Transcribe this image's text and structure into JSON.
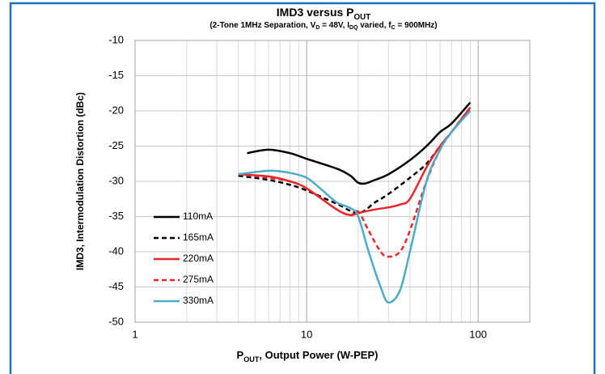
{
  "chart_data": {
    "type": "line",
    "title": [
      "IMD3 versus P",
      "OUT"
    ],
    "subtitle": [
      "(2-Tone 1MHz Separation, V",
      "D",
      " = 48V, I",
      "DQ",
      " varied, f",
      "C",
      " = 900MHz)"
    ],
    "xlabel": [
      "P",
      "OUT",
      ", Output Power (W-PEP)"
    ],
    "ylabel": "IMD3, Intermodulation Distortion (dBc)",
    "xscale": "log",
    "xlim": [
      1,
      200
    ],
    "xticks": [
      1,
      10,
      100
    ],
    "xminor": [
      2,
      3,
      4,
      5,
      6,
      7,
      8,
      9,
      20,
      30,
      40,
      50,
      60,
      70,
      80,
      90
    ],
    "ylim": [
      -50,
      -10
    ],
    "yticks": [
      -50,
      -45,
      -40,
      -35,
      -30,
      -25,
      -20,
      -15,
      -10
    ],
    "grid": true,
    "legend": "lower left",
    "series": [
      {
        "name": "110mA",
        "color": "#000000",
        "dash": false,
        "x": [
          4.5,
          6,
          8,
          10,
          15,
          18,
          20,
          22,
          25,
          30,
          40,
          50,
          60,
          70,
          90
        ],
        "values": [
          -26,
          -25.5,
          -26,
          -26.8,
          -28.2,
          -29.2,
          -30.2,
          -30.3,
          -29.8,
          -29,
          -27,
          -25,
          -23,
          -21.8,
          -18.8
        ]
      },
      {
        "name": "165mA",
        "color": "#000000",
        "dash": true,
        "x": [
          4,
          6,
          8,
          10,
          15,
          20,
          25,
          30,
          40,
          50,
          60,
          70,
          90
        ],
        "values": [
          -29.2,
          -29.8,
          -30.5,
          -31.3,
          -33.2,
          -34.5,
          -33,
          -31.8,
          -29.5,
          -27.5,
          -25,
          -23,
          -19.8
        ]
      },
      {
        "name": "220mA",
        "color": "#e8262b",
        "dash": false,
        "x": [
          4,
          6,
          8,
          10,
          15,
          18,
          20,
          25,
          30,
          35,
          40,
          50,
          60,
          70,
          90
        ],
        "values": [
          -29,
          -29.3,
          -30,
          -31,
          -34,
          -34.8,
          -34.5,
          -34,
          -33.7,
          -33.3,
          -32.5,
          -28,
          -25,
          -23,
          -19.5
        ]
      },
      {
        "name": "275mA",
        "color": "#e8262b",
        "dash": true,
        "x": [
          4,
          6,
          8,
          10,
          15,
          18,
          20,
          23,
          27,
          30,
          35,
          40,
          50,
          60,
          70,
          90
        ],
        "values": [
          -29,
          -29.5,
          -30,
          -31,
          -34,
          -34.8,
          -34.3,
          -37,
          -40,
          -40.7,
          -40,
          -37,
          -30,
          -25.5,
          -23,
          -19.5
        ]
      },
      {
        "name": "330mA",
        "color": "#4bacc6",
        "dash": false,
        "x": [
          4,
          6,
          8,
          10,
          12,
          15,
          18,
          20,
          23,
          27,
          30,
          35,
          40,
          50,
          60,
          70,
          90
        ],
        "values": [
          -29,
          -28.5,
          -28.8,
          -29.5,
          -31,
          -33,
          -33.8,
          -35,
          -40,
          -45,
          -47.2,
          -45.5,
          -40,
          -30,
          -25.5,
          -23,
          -20
        ]
      }
    ]
  }
}
